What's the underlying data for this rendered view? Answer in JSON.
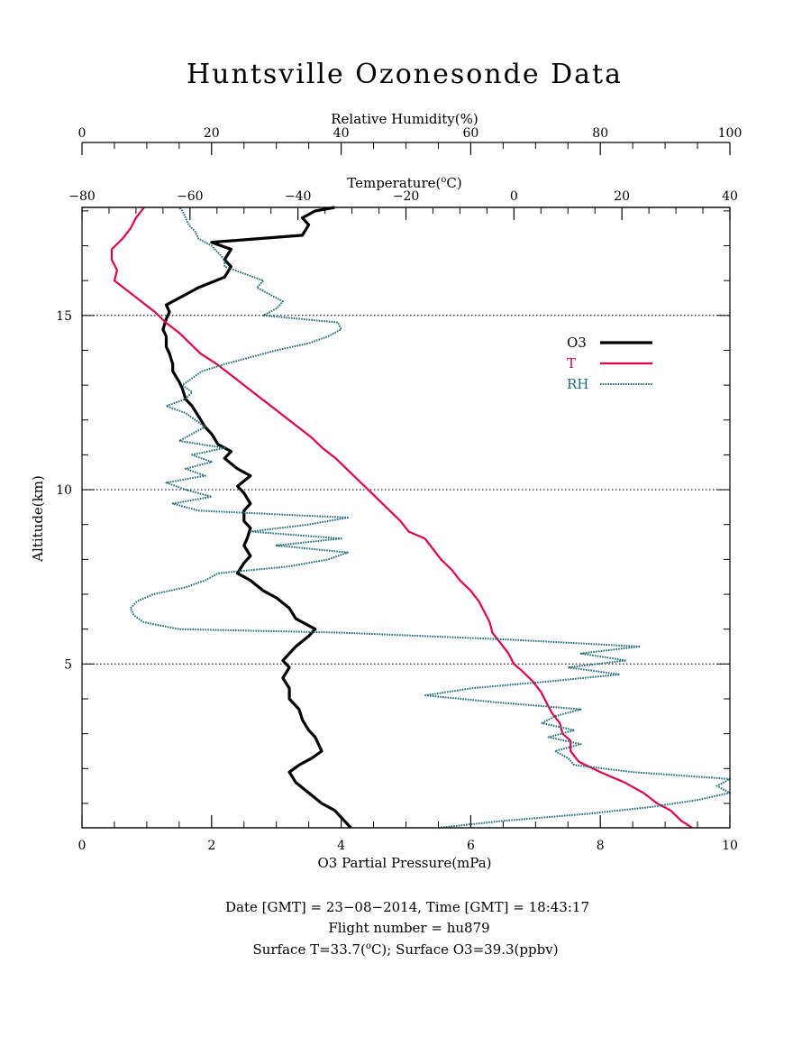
{
  "chart_data": {
    "type": "line",
    "title": "Huntsville Ozonesonde Data",
    "xlabel": "O3 Partial Pressure(mPa)",
    "xlabel_top_rh": "Relative Humidity(%)",
    "xlabel_top_temp_prefix": "Temperature(",
    "xlabel_top_temp_sup": "o",
    "xlabel_top_temp_suffix": "C)",
    "ylabel": "Altitude(km)",
    "xlim": [
      0,
      10
    ],
    "x_ticks": [
      "0",
      "2",
      "4",
      "6",
      "8",
      "10"
    ],
    "rh_lim": [
      0,
      100
    ],
    "rh_ticks": [
      "0",
      "20",
      "40",
      "60",
      "80",
      "100"
    ],
    "temp_lim": [
      -80,
      40
    ],
    "temp_ticks": [
      "−80",
      "−60",
      "−40",
      "−20",
      "0",
      "20",
      "40"
    ],
    "ylim": [
      0.3,
      18.1
    ],
    "y_ticks": [
      "5",
      "10",
      "15"
    ],
    "reference_lines": [
      5,
      10,
      15
    ],
    "legend_position": "upper-right",
    "colors": {
      "O3": "#000000",
      "T": "#e0004a",
      "RH": "#1f6b78"
    },
    "series": [
      {
        "name": "O3",
        "axis": "o3_mPa",
        "altitude": [
          0.3,
          0.5,
          0.8,
          1.0,
          1.3,
          1.6,
          1.9,
          2.1,
          2.3,
          2.5,
          2.7,
          2.9,
          3.1,
          3.4,
          3.7,
          4.0,
          4.3,
          4.6,
          4.9,
          5.1,
          5.3,
          5.5,
          5.8,
          6.0,
          6.3,
          6.6,
          6.9,
          7.1,
          7.4,
          7.6,
          7.9,
          8.1,
          8.4,
          8.6,
          8.9,
          9.1,
          9.4,
          9.6,
          9.9,
          10.1,
          10.4,
          10.6,
          10.9,
          11.1,
          11.3,
          11.6,
          11.8,
          12.1,
          12.4,
          12.6,
          12.9,
          13.1,
          13.4,
          13.6,
          13.9,
          14.1,
          14.4,
          14.6,
          14.9,
          15.1,
          15.3,
          15.5,
          15.8,
          16.1,
          16.4,
          16.6,
          16.9,
          17.1,
          17.3,
          17.6,
          17.8,
          18.0,
          18.1
        ],
        "values": [
          4.15,
          4.05,
          3.9,
          3.7,
          3.5,
          3.3,
          3.2,
          3.35,
          3.55,
          3.7,
          3.65,
          3.6,
          3.5,
          3.4,
          3.35,
          3.2,
          3.2,
          3.1,
          3.2,
          3.1,
          3.2,
          3.3,
          3.5,
          3.6,
          3.3,
          3.2,
          3.0,
          2.8,
          2.6,
          2.4,
          2.5,
          2.6,
          2.5,
          2.55,
          2.6,
          2.5,
          2.5,
          2.6,
          2.5,
          2.4,
          2.6,
          2.4,
          2.2,
          2.3,
          2.1,
          2.0,
          1.9,
          1.8,
          1.7,
          1.6,
          1.55,
          1.5,
          1.4,
          1.4,
          1.35,
          1.3,
          1.3,
          1.25,
          1.3,
          1.35,
          1.3,
          1.5,
          1.8,
          2.2,
          2.3,
          2.2,
          2.3,
          2.0,
          3.4,
          3.5,
          3.4,
          3.6,
          3.9
        ]
      },
      {
        "name": "T",
        "axis": "temp_C",
        "altitude": [
          0.3,
          0.5,
          0.8,
          1.0,
          1.3,
          1.6,
          1.9,
          2.2,
          2.5,
          2.8,
          3.0,
          3.3,
          3.6,
          3.9,
          4.2,
          4.5,
          4.8,
          5.0,
          5.3,
          5.6,
          5.9,
          6.2,
          6.5,
          6.8,
          7.1,
          7.4,
          7.7,
          8.0,
          8.3,
          8.6,
          8.8,
          9.1,
          9.4,
          9.7,
          10.0,
          10.3,
          10.6,
          10.9,
          11.2,
          11.5,
          11.8,
          12.1,
          12.4,
          12.7,
          13.0,
          13.3,
          13.6,
          13.9,
          14.2,
          14.5,
          14.8,
          15.1,
          15.4,
          15.7,
          16.0,
          16.3,
          16.6,
          16.9,
          17.2,
          17.5,
          17.8,
          18.1
        ],
        "values": [
          33.0,
          31.0,
          29.0,
          26.5,
          24.0,
          20.5,
          16.0,
          12.0,
          10.5,
          10.5,
          9.0,
          8.5,
          7.0,
          6.0,
          5.0,
          3.5,
          1.5,
          0.0,
          -1.0,
          -2.5,
          -4.0,
          -4.5,
          -5.5,
          -6.5,
          -8.0,
          -10.0,
          -11.5,
          -13.5,
          -15.0,
          -16.5,
          -19.5,
          -21.0,
          -23.0,
          -25.0,
          -27.0,
          -29.0,
          -31.0,
          -33.0,
          -35.5,
          -37.5,
          -40.0,
          -42.5,
          -45.0,
          -47.5,
          -50.0,
          -52.5,
          -55.0,
          -58.0,
          -60.0,
          -62.0,
          -64.5,
          -66.5,
          -69.0,
          -71.5,
          -74.0,
          -73.5,
          -74.5,
          -74.5,
          -72.5,
          -71.0,
          -70.0,
          -68.5
        ]
      },
      {
        "name": "RH",
        "axis": "rh_percent",
        "altitude": [
          0.3,
          0.5,
          0.7,
          0.9,
          1.1,
          1.3,
          1.5,
          1.7,
          1.9,
          2.1,
          2.3,
          2.5,
          2.7,
          2.9,
          3.1,
          3.3,
          3.5,
          3.7,
          3.9,
          4.1,
          4.3,
          4.5,
          4.7,
          4.9,
          5.1,
          5.3,
          5.5,
          5.7,
          5.9,
          6.0,
          6.2,
          6.4,
          6.6,
          6.8,
          7.0,
          7.2,
          7.4,
          7.6,
          7.8,
          8.0,
          8.2,
          8.4,
          8.6,
          8.8,
          9.0,
          9.2,
          9.4,
          9.6,
          9.8,
          10.0,
          10.2,
          10.4,
          10.6,
          10.8,
          11.0,
          11.2,
          11.4,
          11.6,
          11.8,
          12.0,
          12.2,
          12.4,
          12.6,
          12.8,
          13.0,
          13.2,
          13.4,
          13.6,
          13.8,
          14.0,
          14.2,
          14.4,
          14.6,
          14.8,
          15.0,
          15.2,
          15.4,
          15.6,
          15.8,
          16.0,
          16.2,
          16.4,
          16.6,
          16.8,
          17.0,
          17.2,
          17.4,
          17.6,
          17.8,
          18.0,
          18.1
        ],
        "values": [
          55.0,
          65.0,
          78.0,
          88.0,
          95.0,
          100.0,
          98.0,
          100.0,
          85.0,
          76.0,
          75.0,
          73.0,
          77.0,
          72.0,
          76.0,
          71.0,
          73.0,
          77.0,
          64.0,
          53.0,
          60.0,
          72.0,
          83.0,
          75.0,
          84.0,
          77.0,
          86.0,
          66.0,
          40.0,
          15.0,
          9.5,
          8.0,
          7.5,
          8.5,
          11.0,
          16.0,
          19.0,
          21.0,
          32.0,
          38.0,
          41.0,
          30.0,
          40.0,
          26.0,
          35.0,
          41.0,
          18.0,
          14.0,
          20.0,
          16.0,
          13.0,
          19.0,
          16.0,
          20.0,
          17.0,
          22.0,
          15.0,
          17.0,
          19.0,
          17.5,
          16.0,
          13.0,
          16.0,
          17.0,
          15.5,
          17.0,
          18.5,
          22.0,
          26.0,
          30.0,
          35.0,
          38.0,
          40.0,
          39.5,
          28.0,
          30.0,
          31.0,
          29.0,
          27.0,
          28.0,
          25.0,
          22.0,
          22.0,
          21.0,
          20.0,
          18.0,
          17.5,
          16.5,
          16.0,
          15.5,
          15.0
        ]
      }
    ],
    "footer": {
      "line1": "Date [GMT] = 23−08−2014,  Time [GMT] = 18:43:17",
      "line2": "Flight number = hu879",
      "line3_prefix": "Surface T=33.7(",
      "line3_sup": "o",
      "line3_suffix": "C); Surface O3=39.3(ppbv)"
    }
  }
}
